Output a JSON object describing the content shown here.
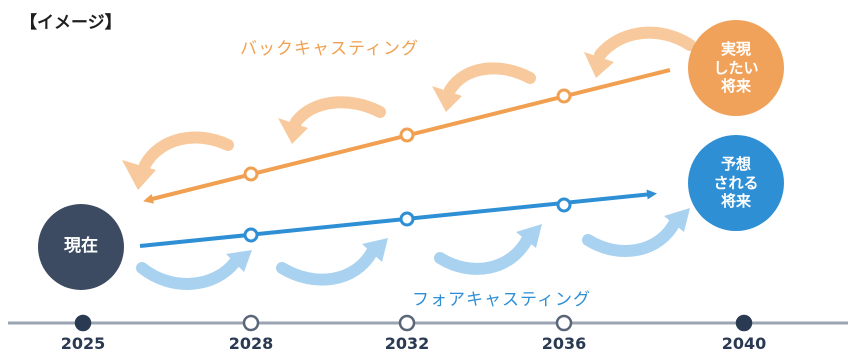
{
  "title": "【イメージ】",
  "backcasting_label": "バックキャスティング",
  "forecasting_label": "フォアキャスティング",
  "nodes": {
    "current": [
      "現在"
    ],
    "desired_future": [
      "実現",
      "したい",
      "将来"
    ],
    "predicted_future": [
      "予想",
      "される",
      "将来"
    ]
  },
  "timeline": {
    "years": [
      "2025",
      "2028",
      "2032",
      "2036",
      "2040"
    ],
    "filled": [
      true,
      false,
      false,
      false,
      true
    ]
  },
  "colors": {
    "backcasting": "#f0a050",
    "backcasting_light": "#f8c99c",
    "forecasting": "#2f8fd4",
    "forecasting_light": "#a9d2f0",
    "current": "#3c4a62",
    "timeline": "#2a3a52"
  }
}
